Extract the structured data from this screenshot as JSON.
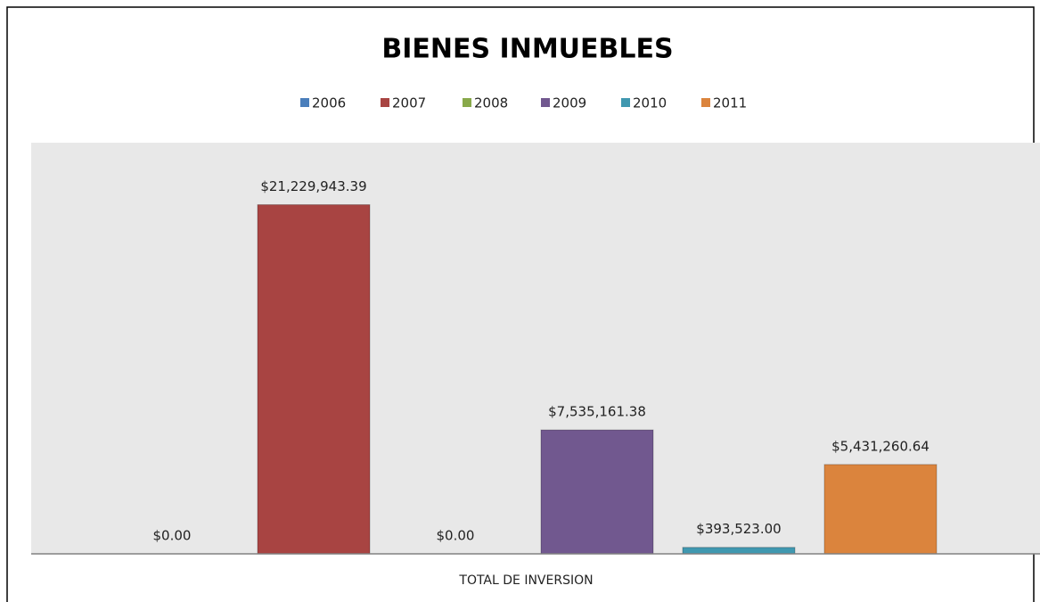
{
  "chart_data": {
    "type": "bar",
    "title": "BIENES INMUEBLES",
    "categories": [
      "TOTAL DE INVERSION"
    ],
    "series": [
      {
        "name": "2006",
        "color": "#4a7ebb",
        "values": [
          0
        ],
        "value_labels": [
          "$0.00"
        ]
      },
      {
        "name": "2007",
        "color": "#a84442",
        "values": [
          21229943.39
        ],
        "value_labels": [
          "$21,229,943.39"
        ]
      },
      {
        "name": "2008",
        "color": "#88a94a",
        "values": [
          0
        ],
        "value_labels": [
          "$0.00"
        ]
      },
      {
        "name": "2009",
        "color": "#71588f",
        "values": [
          7535161.38
        ],
        "value_labels": [
          "$7,535,161.38"
        ]
      },
      {
        "name": "2010",
        "color": "#4098b0",
        "values": [
          393523
        ],
        "value_labels": [
          "$393,523.00"
        ]
      },
      {
        "name": "2011",
        "color": "#db843d",
        "values": [
          5431260.64
        ],
        "value_labels": [
          "$5,431,260.64"
        ]
      }
    ],
    "ylim": [
      0,
      25000000
    ],
    "legend": "top"
  }
}
